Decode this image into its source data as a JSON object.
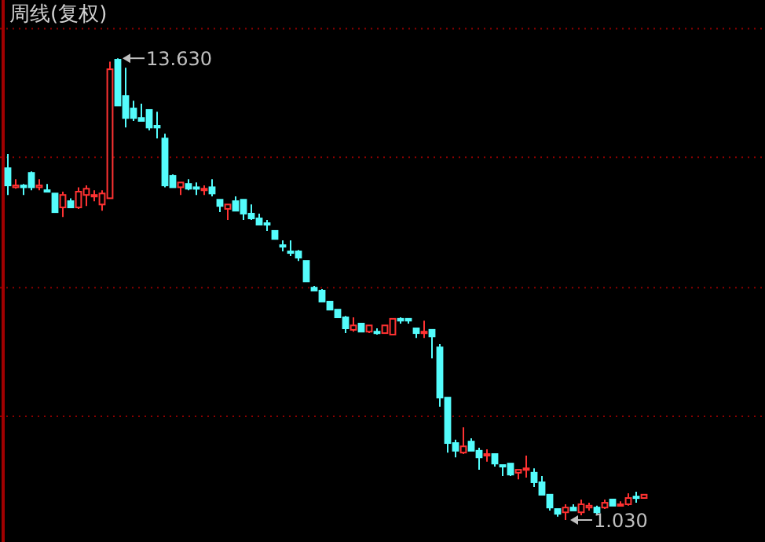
{
  "chart_data": {
    "type": "candlestick",
    "title": "周线(复权)",
    "categories": [
      null,
      null,
      null,
      null,
      null,
      null,
      null,
      null,
      null,
      null,
      null,
      null,
      null,
      null,
      null,
      null,
      null,
      null,
      null,
      null,
      null,
      null,
      null,
      null,
      null,
      null,
      null,
      null,
      null,
      null,
      null,
      null,
      null,
      null,
      null,
      null,
      null,
      null,
      null,
      null,
      null,
      null,
      null,
      null,
      null,
      null,
      null,
      null,
      null,
      null,
      null,
      null,
      null,
      null,
      null,
      null,
      null,
      null,
      null,
      null,
      null,
      null,
      null,
      null,
      null,
      null,
      null,
      null,
      null,
      null,
      null,
      null,
      null,
      null,
      null,
      null,
      null,
      null,
      null,
      null,
      null,
      null
    ],
    "ohlc": [
      [
        10.63,
        11.02,
        9.9,
        10.16
      ],
      [
        10.11,
        10.33,
        10.07,
        10.16
      ],
      [
        10.16,
        10.2,
        9.9,
        10.11
      ],
      [
        10.5,
        10.54,
        10.03,
        10.11
      ],
      [
        10.11,
        10.33,
        10.03,
        10.16
      ],
      [
        10.03,
        10.2,
        9.99,
        9.99
      ],
      [
        9.94,
        9.94,
        9.43,
        9.43
      ],
      [
        9.56,
        9.99,
        9.3,
        9.9
      ],
      [
        9.73,
        9.81,
        9.56,
        9.56
      ],
      [
        9.56,
        10.11,
        9.52,
        9.99
      ],
      [
        9.9,
        10.16,
        9.6,
        10.07
      ],
      [
        9.86,
        10.03,
        9.73,
        9.9
      ],
      [
        9.64,
        10.03,
        9.47,
        9.94
      ],
      [
        9.81,
        13.54,
        9.81,
        13.33
      ],
      [
        13.59,
        13.63,
        12.34,
        12.34
      ],
      [
        12.6,
        13.37,
        11.74,
        12.0
      ],
      [
        12.26,
        12.47,
        11.92,
        12.0
      ],
      [
        12.0,
        12.39,
        11.92,
        11.92
      ],
      [
        12.22,
        12.22,
        11.66,
        11.74
      ],
      [
        11.79,
        12.17,
        11.44,
        11.74
      ],
      [
        11.44,
        11.57,
        10.11,
        10.16
      ],
      [
        10.42,
        10.46,
        10.11,
        10.11
      ],
      [
        10.11,
        10.24,
        9.9,
        10.24
      ],
      [
        10.2,
        10.33,
        10.03,
        10.07
      ],
      [
        10.11,
        10.24,
        9.9,
        10.07
      ],
      [
        10.03,
        10.16,
        9.9,
        10.07
      ],
      [
        10.11,
        10.33,
        9.86,
        9.94
      ],
      [
        9.77,
        9.77,
        9.43,
        9.6
      ],
      [
        9.52,
        9.64,
        9.22,
        9.64
      ],
      [
        9.73,
        9.86,
        9.47,
        9.47
      ],
      [
        9.77,
        9.77,
        9.22,
        9.39
      ],
      [
        9.39,
        9.64,
        9.22,
        9.26
      ],
      [
        9.26,
        9.39,
        9.09,
        9.09
      ],
      [
        9.13,
        9.22,
        8.92,
        9.09
      ],
      [
        8.92,
        8.92,
        8.7,
        8.7
      ],
      [
        8.53,
        8.66,
        8.36,
        8.49
      ],
      [
        8.36,
        8.66,
        8.23,
        8.32
      ],
      [
        8.36,
        8.4,
        8.1,
        8.19
      ],
      [
        8.1,
        8.1,
        7.54,
        7.54
      ],
      [
        7.37,
        7.42,
        7.29,
        7.29
      ],
      [
        7.29,
        7.33,
        6.99,
        6.99
      ],
      [
        6.99,
        6.99,
        6.77,
        6.77
      ],
      [
        6.77,
        6.77,
        6.56,
        6.56
      ],
      [
        6.56,
        6.6,
        6.13,
        6.26
      ],
      [
        6.22,
        6.56,
        6.17,
        6.34
      ],
      [
        6.39,
        6.39,
        6.17,
        6.17
      ],
      [
        6.17,
        6.34,
        6.13,
        6.34
      ],
      [
        6.17,
        6.26,
        6.09,
        6.13
      ],
      [
        6.13,
        6.34,
        6.13,
        6.34
      ],
      [
        6.09,
        6.52,
        6.09,
        6.52
      ],
      [
        6.52,
        6.56,
        6.39,
        6.47
      ],
      [
        6.52,
        6.52,
        6.39,
        6.47
      ],
      [
        6.26,
        6.26,
        6.0,
        6.13
      ],
      [
        6.13,
        6.47,
        6.0,
        6.17
      ],
      [
        6.22,
        6.22,
        5.44,
        6.04
      ],
      [
        5.74,
        5.83,
        4.12,
        4.37
      ],
      [
        4.37,
        4.37,
        2.87,
        3.13
      ],
      [
        3.13,
        3.22,
        2.74,
        2.92
      ],
      [
        2.87,
        3.56,
        2.83,
        3.04
      ],
      [
        3.17,
        3.26,
        2.92,
        2.92
      ],
      [
        2.92,
        3.0,
        2.4,
        2.74
      ],
      [
        2.79,
        2.96,
        2.62,
        2.83
      ],
      [
        2.83,
        2.83,
        2.49,
        2.57
      ],
      [
        2.53,
        2.53,
        2.23,
        2.49
      ],
      [
        2.57,
        2.57,
        2.23,
        2.27
      ],
      [
        2.32,
        2.4,
        2.14,
        2.4
      ],
      [
        2.4,
        2.79,
        2.19,
        2.44
      ],
      [
        2.32,
        2.44,
        1.93,
        2.06
      ],
      [
        2.06,
        2.23,
        1.72,
        1.72
      ],
      [
        1.72,
        1.72,
        1.29,
        1.37
      ],
      [
        1.33,
        1.33,
        1.12,
        1.2
      ],
      [
        1.24,
        1.46,
        1.03,
        1.37
      ],
      [
        1.37,
        1.46,
        1.29,
        1.29
      ],
      [
        1.24,
        1.59,
        1.16,
        1.46
      ],
      [
        1.37,
        1.5,
        1.29,
        1.42
      ],
      [
        1.37,
        1.42,
        1.2,
        1.24
      ],
      [
        1.37,
        1.59,
        1.33,
        1.5
      ],
      [
        1.59,
        1.59,
        1.42,
        1.42
      ],
      [
        1.42,
        1.54,
        1.42,
        1.46
      ],
      [
        1.46,
        1.76,
        1.42,
        1.63
      ],
      [
        1.67,
        1.8,
        1.5,
        1.63
      ],
      [
        1.63,
        1.72,
        1.63,
        1.72
      ]
    ],
    "colors": [
      "#54fcfc",
      "#ff3232",
      "#54fcfc",
      "#54fcfc",
      "#ff3232",
      "#54fcfc",
      "#54fcfc",
      "#ff3232",
      "#54fcfc",
      "#ff3232",
      "#ff3232",
      "#ff3232",
      "#ff3232",
      "#ff3232",
      "#54fcfc",
      "#54fcfc",
      "#54fcfc",
      "#54fcfc",
      "#54fcfc",
      "#54fcfc",
      "#54fcfc",
      "#54fcfc",
      "#ff3232",
      "#54fcfc",
      "#54fcfc",
      "#ff3232",
      "#54fcfc",
      "#54fcfc",
      "#ff3232",
      "#54fcfc",
      "#54fcfc",
      "#54fcfc",
      "#54fcfc",
      "#54fcfc",
      "#54fcfc",
      "#54fcfc",
      "#54fcfc",
      "#54fcfc",
      "#54fcfc",
      "#54fcfc",
      "#54fcfc",
      "#54fcfc",
      "#54fcfc",
      "#54fcfc",
      "#ff3232",
      "#54fcfc",
      "#ff3232",
      "#54fcfc",
      "#ff3232",
      "#ff3232",
      "#54fcfc",
      "#54fcfc",
      "#54fcfc",
      "#ff3232",
      "#54fcfc",
      "#54fcfc",
      "#54fcfc",
      "#54fcfc",
      "#ff3232",
      "#54fcfc",
      "#54fcfc",
      "#ff3232",
      "#54fcfc",
      "#54fcfc",
      "#54fcfc",
      "#ff3232",
      "#ff3232",
      "#54fcfc",
      "#54fcfc",
      "#54fcfc",
      "#54fcfc",
      "#ff3232",
      "#54fcfc",
      "#ff3232",
      "#ff3232",
      "#54fcfc",
      "#ff3232",
      "#54fcfc",
      "#ff3232",
      "#ff3232",
      "#54fcfc",
      "#ff3232"
    ],
    "ylim": [
      0.43,
      15.22
    ],
    "yticks": [
      {
        "value": 14.44,
        "label": null
      },
      {
        "value": 10.93,
        "label": null
      },
      {
        "value": 7.37,
        "label": null
      },
      {
        "value": 3.86,
        "label": null
      }
    ],
    "grid": "y",
    "annotations": [
      "13.630",
      "1.030"
    ]
  }
}
